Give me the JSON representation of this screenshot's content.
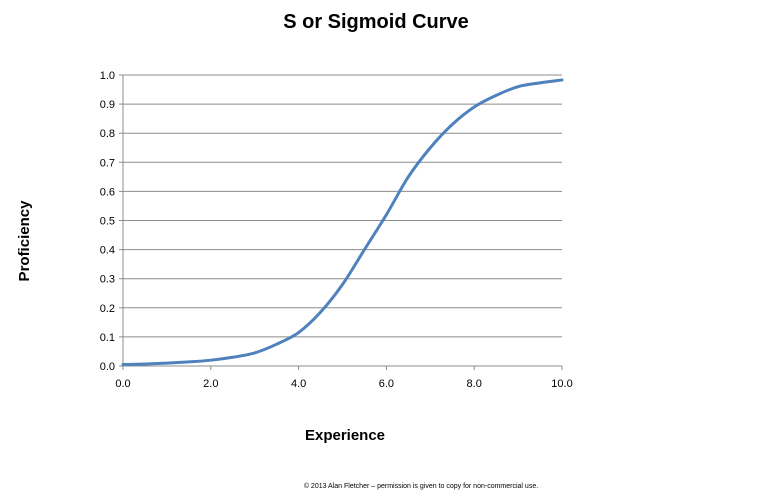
{
  "chart_data": {
    "type": "line",
    "title": "S or Sigmoid Curve",
    "xlabel": "Experience",
    "ylabel": "Proficiency",
    "xlim": [
      0,
      10
    ],
    "ylim": [
      0,
      1
    ],
    "x_ticks": [
      "0.0",
      "2.0",
      "4.0",
      "6.0",
      "8.0",
      "10.0"
    ],
    "y_ticks": [
      "0.0",
      "0.1",
      "0.2",
      "0.3",
      "0.4",
      "0.5",
      "0.6",
      "0.7",
      "0.8",
      "0.9",
      "1.0"
    ],
    "grid": "horizontal",
    "legend": "none",
    "series": [
      {
        "color": "#4f81bd",
        "x": [
          0,
          0.5,
          1,
          1.5,
          2,
          2.5,
          3,
          3.5,
          4,
          4.5,
          5,
          5.5,
          6,
          6.5,
          7,
          7.5,
          8,
          8.5,
          9,
          9.5,
          10
        ],
        "y": [
          0.005,
          0.007,
          0.01,
          0.014,
          0.02,
          0.03,
          0.045,
          0.075,
          0.115,
          0.185,
          0.28,
          0.4,
          0.52,
          0.65,
          0.75,
          0.83,
          0.89,
          0.93,
          0.96,
          0.973,
          0.983
        ]
      }
    ]
  },
  "footnote": "© 2013 Alan Fletcher – permission is given to copy for non-commercial use."
}
